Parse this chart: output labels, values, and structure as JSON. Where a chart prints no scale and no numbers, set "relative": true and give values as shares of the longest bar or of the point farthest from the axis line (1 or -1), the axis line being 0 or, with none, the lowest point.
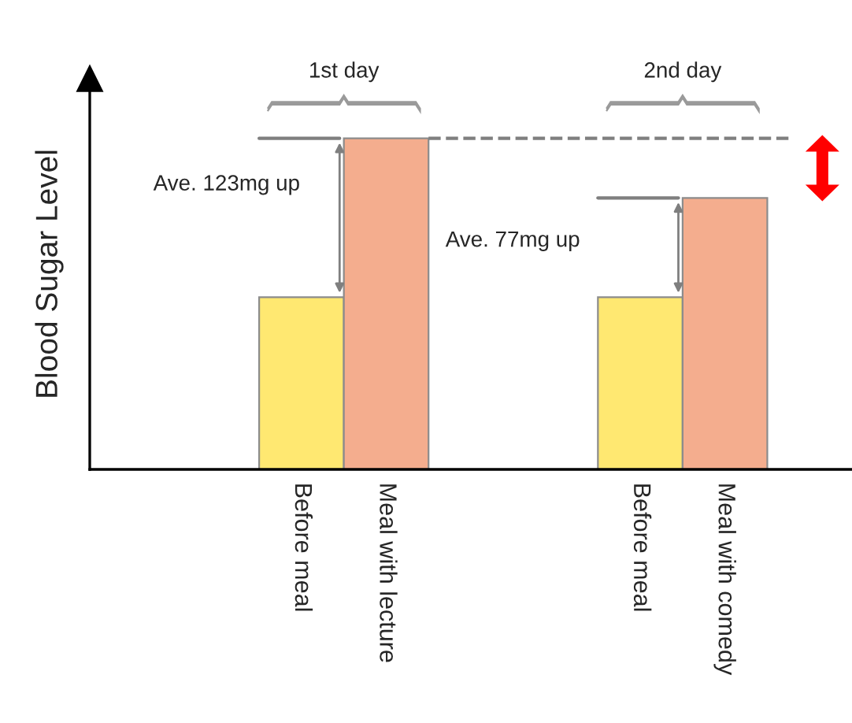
{
  "chart_data": {
    "type": "bar",
    "relative": true,
    "ylabel": "Blood Sugar Level",
    "categories": [
      null,
      null,
      "Before meal",
      "Meal with lecture",
      null,
      null,
      "Before meal",
      "Meal with comedy",
      null
    ],
    "values": [
      null,
      null,
      0.52,
      1,
      null,
      null,
      0.52,
      0.82,
      null
    ],
    "colors": [
      "#ffe871",
      "#ffe871",
      "#ffe871",
      "#f4ad8e",
      "#ffe871",
      "#ffe871",
      "#ffe871",
      "#f4ad8e",
      "#ffe871"
    ],
    "ref_lines": [
      {
        "axis": "y",
        "value": 1,
        "color": "#7f7f7f",
        "line_style": "dashed"
      }
    ],
    "annotations": [
      "1st day",
      "2nd day",
      "Ave. 123mg up",
      "Ave. 77mg up"
    ]
  }
}
